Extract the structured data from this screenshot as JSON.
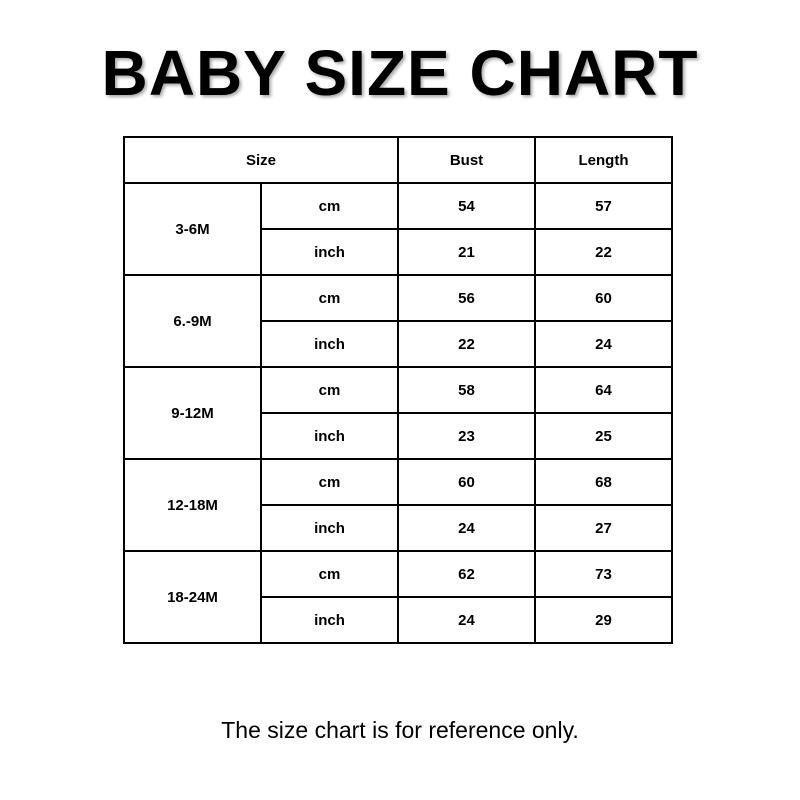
{
  "title": "BABY SIZE CHART",
  "table": {
    "headers": {
      "size": "Size",
      "bust": "Bust",
      "length": "Length"
    },
    "rows": [
      {
        "size": "3-6M",
        "cm": {
          "unit": "cm",
          "bust": "54",
          "length": "57"
        },
        "inch": {
          "unit": "inch",
          "bust": "21",
          "length": "22"
        }
      },
      {
        "size": "6.-9M",
        "cm": {
          "unit": "cm",
          "bust": "56",
          "length": "60"
        },
        "inch": {
          "unit": "inch",
          "bust": "22",
          "length": "24"
        }
      },
      {
        "size": "9-12M",
        "cm": {
          "unit": "cm",
          "bust": "58",
          "length": "64"
        },
        "inch": {
          "unit": "inch",
          "bust": "23",
          "length": "25"
        }
      },
      {
        "size": "12-18M",
        "cm": {
          "unit": "cm",
          "bust": "60",
          "length": "68"
        },
        "inch": {
          "unit": "inch",
          "bust": "24",
          "length": "27"
        }
      },
      {
        "size": "18-24M",
        "cm": {
          "unit": "cm",
          "bust": "62",
          "length": "73"
        },
        "inch": {
          "unit": "inch",
          "bust": "24",
          "length": "29"
        }
      }
    ]
  },
  "note": "The size chart is for reference only."
}
